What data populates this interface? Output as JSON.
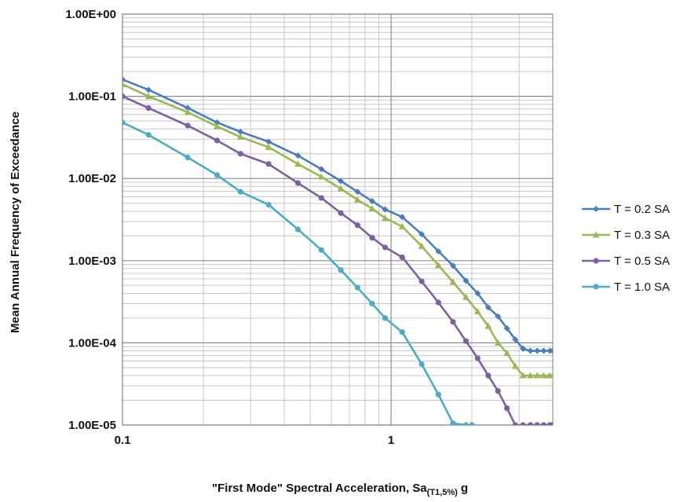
{
  "chart_data": {
    "type": "line",
    "title": "",
    "xlabel": {
      "prefix": "\"First Mode\" Spectral Acceleration, Sa",
      "subscript": "(T1,5%)",
      "suffix": " g"
    },
    "ylabel": "Mean Annual Frequency of Exceedance",
    "xscale": "log",
    "yscale": "log",
    "xlim": [
      0.1,
      4
    ],
    "ylim": [
      1e-05,
      1
    ],
    "x_tick_labels": [
      "0.1",
      "1"
    ],
    "y_tick_labels": [
      "1.00E+00",
      "1.00E-01",
      "1.00E-02",
      "1.00E-03",
      "1.00E-04",
      "1.00E-05"
    ],
    "grid": true,
    "legend_position": "right",
    "series": [
      {
        "name": "T = 0.2 SA",
        "color": "#4a7ebb",
        "marker": "diamond",
        "x": [
          0.1,
          0.125,
          0.175,
          0.225,
          0.275,
          0.35,
          0.45,
          0.55,
          0.65,
          0.75,
          0.85,
          0.95,
          1.1,
          1.3,
          1.5,
          1.7,
          1.9,
          2.1,
          2.3,
          2.5,
          2.7,
          2.9,
          3.1,
          3.3,
          3.5,
          3.7,
          3.9,
          4.0
        ],
        "y": [
          0.16,
          0.12,
          0.072,
          0.048,
          0.037,
          0.028,
          0.019,
          0.013,
          0.0093,
          0.0069,
          0.0053,
          0.0042,
          0.0034,
          0.0021,
          0.0013,
          0.00087,
          0.00057,
          0.0004,
          0.00027,
          0.00021,
          0.00015,
          0.00011,
          8.5e-05,
          8e-05,
          8e-05,
          8e-05,
          8e-05,
          8e-05
        ]
      },
      {
        "name": "T = 0.3 SA",
        "color": "#98b954",
        "marker": "triangle",
        "x": [
          0.1,
          0.125,
          0.175,
          0.225,
          0.275,
          0.35,
          0.45,
          0.55,
          0.65,
          0.75,
          0.85,
          0.95,
          1.1,
          1.3,
          1.5,
          1.7,
          1.9,
          2.1,
          2.3,
          2.5,
          2.7,
          2.9,
          3.1,
          3.3,
          3.5,
          3.7,
          3.9,
          4.0
        ],
        "y": [
          0.14,
          0.1,
          0.064,
          0.043,
          0.032,
          0.024,
          0.015,
          0.0105,
          0.0075,
          0.0055,
          0.0043,
          0.0033,
          0.0026,
          0.0015,
          0.00088,
          0.00055,
          0.00036,
          0.00024,
          0.00016,
          0.0001,
          7.5e-05,
          5.2e-05,
          4e-05,
          4e-05,
          4e-05,
          4e-05,
          4e-05,
          4e-05
        ]
      },
      {
        "name": "T = 0.5 SA",
        "color": "#7d60a0",
        "marker": "circle",
        "x": [
          0.1,
          0.125,
          0.175,
          0.225,
          0.275,
          0.35,
          0.45,
          0.55,
          0.65,
          0.75,
          0.85,
          0.95,
          1.1,
          1.3,
          1.5,
          1.7,
          1.9,
          2.1,
          2.3,
          2.5,
          2.7,
          2.9,
          3.1,
          3.3,
          3.5,
          3.7,
          3.9,
          4.0
        ],
        "y": [
          0.1,
          0.072,
          0.044,
          0.029,
          0.02,
          0.015,
          0.0088,
          0.0058,
          0.0038,
          0.0027,
          0.0019,
          0.00145,
          0.0011,
          0.00056,
          0.00031,
          0.00018,
          0.000105,
          6.5e-05,
          4e-05,
          2.6e-05,
          1.6e-05,
          1e-05,
          1e-05,
          1e-05,
          1e-05,
          1e-05,
          1e-05,
          1e-05
        ]
      },
      {
        "name": "T = 1.0 SA",
        "color": "#4bacc6",
        "marker": "circle",
        "x": [
          0.1,
          0.125,
          0.175,
          0.225,
          0.275,
          0.35,
          0.45,
          0.55,
          0.65,
          0.75,
          0.85,
          0.95,
          1.1,
          1.3,
          1.5,
          1.7,
          1.9,
          2.0
        ],
        "y": [
          0.048,
          0.034,
          0.018,
          0.011,
          0.0069,
          0.0048,
          0.0024,
          0.00135,
          0.00077,
          0.00047,
          0.0003,
          0.0002,
          0.000135,
          5.5e-05,
          2.35e-05,
          1.05e-05,
          1e-05,
          1e-05
        ]
      }
    ]
  }
}
